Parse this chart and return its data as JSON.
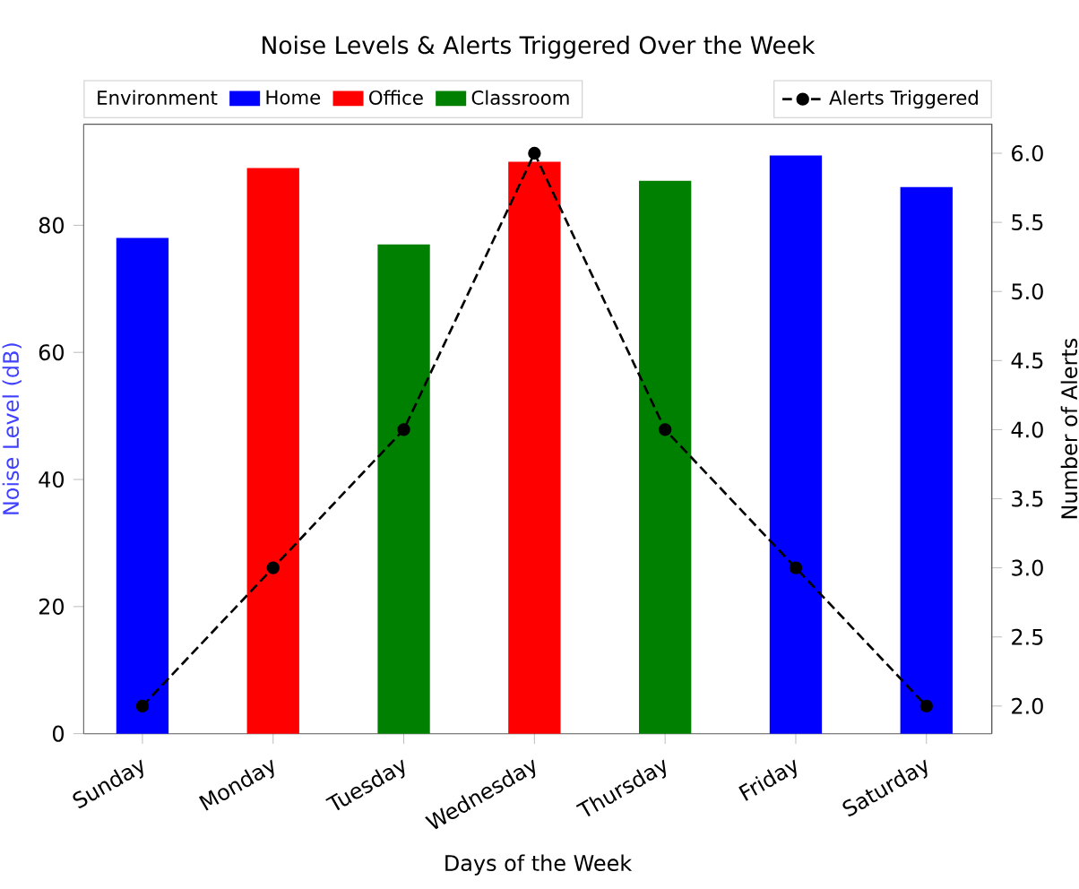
{
  "chart_data": {
    "type": "bar",
    "title": "Noise Levels & Alerts Triggered Over the Week",
    "xlabel": "Days of the Week",
    "ylabel": "Noise Level (dB)",
    "y2label": "Number of Alerts",
    "legend_title": "Environment",
    "legend": "top",
    "categories": [
      "Sunday",
      "Monday",
      "Tuesday",
      "Wednesday",
      "Thursday",
      "Friday",
      "Saturday"
    ],
    "ylim": [
      0,
      95.9
    ],
    "yticks": [
      0,
      20,
      40,
      60,
      80
    ],
    "y2lim": [
      1.8,
      6.21
    ],
    "y2ticks": [
      {
        "value": 2,
        "label": "2.0"
      },
      {
        "value": 2.5,
        "label": "2.5"
      },
      {
        "value": 3,
        "label": "3.0"
      },
      {
        "value": 3.5,
        "label": "3.5"
      },
      {
        "value": 4,
        "label": "4.0"
      },
      {
        "value": 4.5,
        "label": "4.5"
      },
      {
        "value": 5,
        "label": "5.0"
      },
      {
        "value": 5.5,
        "label": "5.5"
      },
      {
        "value": 6,
        "label": "6.0"
      }
    ],
    "series": [
      {
        "name": "Home",
        "color": "#0000ff",
        "values": [
          78,
          null,
          null,
          null,
          null,
          91,
          86
        ]
      },
      {
        "name": "Office",
        "color": "#ff0000",
        "values": [
          null,
          89,
          null,
          90,
          null,
          null,
          null
        ]
      },
      {
        "name": "Classroom",
        "color": "#008000",
        "values": [
          null,
          null,
          77,
          null,
          87,
          null,
          null
        ]
      },
      {
        "name": "Alerts Triggered",
        "type": "line",
        "axis": "y2",
        "color": "#000000",
        "marker": "circle",
        "line_style": "dashed",
        "values": [
          2,
          3,
          4,
          6,
          4,
          3,
          2
        ]
      }
    ]
  }
}
